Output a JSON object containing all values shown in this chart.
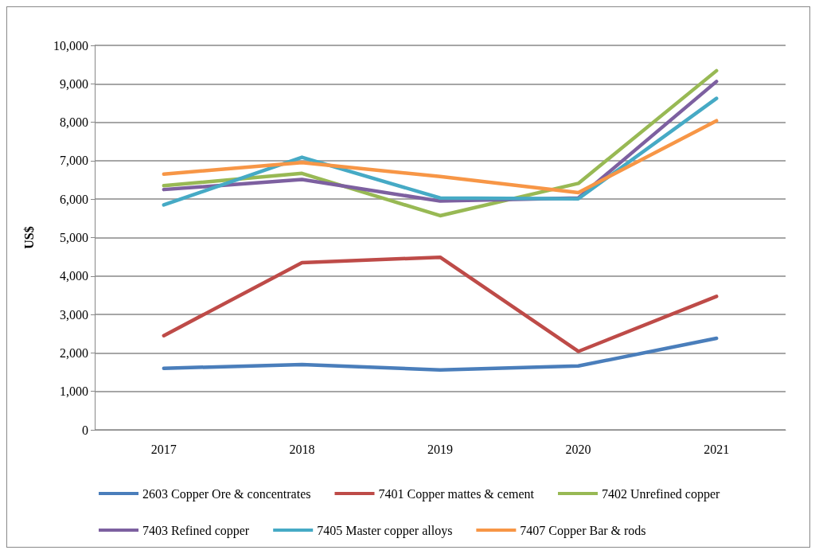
{
  "chart_data": {
    "type": "line",
    "ylabel": "US$",
    "categories": [
      "2017",
      "2018",
      "2019",
      "2020",
      "2021"
    ],
    "ylim": [
      0,
      10000
    ],
    "yticks": [
      {
        "value": 0,
        "label": "0"
      },
      {
        "value": 1000,
        "label": "1,000"
      },
      {
        "value": 2000,
        "label": "2,000"
      },
      {
        "value": 3000,
        "label": "3,000"
      },
      {
        "value": 4000,
        "label": "4,000"
      },
      {
        "value": 5000,
        "label": "5,000"
      },
      {
        "value": 6000,
        "label": "6,000"
      },
      {
        "value": 7000,
        "label": "7,000"
      },
      {
        "value": 8000,
        "label": "8,000"
      },
      {
        "value": 9000,
        "label": "9,000"
      },
      {
        "value": 10000,
        "label": "10,000"
      }
    ],
    "grid": "y",
    "legend": "bottom",
    "marker": "none",
    "line_style": "solid",
    "series": [
      {
        "name": "2603 Copper Ore & concentrates",
        "color": "#4a7ebb",
        "values": [
          1600,
          1700,
          1560,
          1660,
          2380
        ]
      },
      {
        "name": "7401 Copper mattes & cement",
        "color": "#be4b48",
        "values": [
          2450,
          4350,
          4490,
          2040,
          3470
        ]
      },
      {
        "name": "7402 Unrefined copper",
        "color": "#98b954",
        "values": [
          6350,
          6670,
          5570,
          6410,
          9340
        ]
      },
      {
        "name": "7403 Refined copper",
        "color": "#7d60a0",
        "values": [
          6250,
          6510,
          5950,
          6030,
          9060
        ]
      },
      {
        "name": "7405 Master copper alloys",
        "color": "#46aac5",
        "values": [
          5850,
          7090,
          6030,
          6010,
          8620
        ]
      },
      {
        "name": "7407 Copper Bar & rods",
        "color": "#f79646",
        "values": [
          6650,
          6950,
          6590,
          6170,
          8040
        ]
      }
    ]
  }
}
